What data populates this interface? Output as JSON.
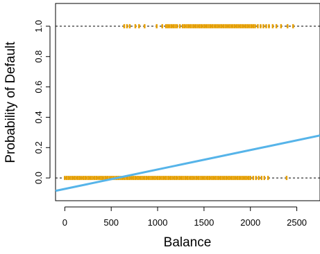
{
  "chart_data": {
    "type": "scatter",
    "title": "",
    "xlabel": "Balance",
    "ylabel": "Probability of Default",
    "xlim": [
      -100,
      2750
    ],
    "ylim": [
      -0.15,
      1.15
    ],
    "xticks": [
      "0",
      "500",
      "1000",
      "1500",
      "2000",
      "2500"
    ],
    "yticks": [
      "0.0",
      "0.2",
      "0.4",
      "0.6",
      "0.8",
      "1.0"
    ],
    "reference_lines": [
      0,
      1
    ],
    "grid": false,
    "legend": "none",
    "colors": {
      "points": "#E69F00",
      "fit_line": "#56B4E9",
      "reference": "#000000"
    },
    "fit_line": {
      "name": "",
      "x": [
        -100,
        2750
      ],
      "y": [
        -0.085,
        0.28
      ]
    },
    "default_points": {
      "y": 1,
      "x": [
        640,
        670,
        700,
        760,
        800,
        860,
        990,
        1050,
        1090,
        1110,
        1130,
        1150,
        1170,
        1190,
        1210,
        1240,
        1270,
        1290,
        1310,
        1330,
        1350,
        1370,
        1390,
        1410,
        1430,
        1450,
        1470,
        1490,
        1510,
        1530,
        1550,
        1570,
        1590,
        1610,
        1630,
        1650,
        1670,
        1690,
        1710,
        1730,
        1750,
        1770,
        1790,
        1810,
        1830,
        1850,
        1870,
        1890,
        1910,
        1930,
        1950,
        1970,
        1990,
        2010,
        2030,
        2050,
        2080,
        2110,
        2140,
        2170,
        2200,
        2240,
        2280,
        2330,
        2400,
        2460
      ]
    },
    "no_default_points": {
      "y": 0,
      "x": [
        0,
        20,
        40,
        60,
        80,
        100,
        120,
        140,
        160,
        180,
        200,
        220,
        240,
        260,
        280,
        300,
        320,
        340,
        360,
        380,
        400,
        420,
        440,
        460,
        480,
        500,
        520,
        540,
        560,
        580,
        600,
        620,
        640,
        660,
        680,
        700,
        720,
        740,
        760,
        780,
        800,
        820,
        840,
        860,
        880,
        900,
        920,
        940,
        960,
        980,
        1000,
        1020,
        1040,
        1060,
        1080,
        1100,
        1120,
        1140,
        1160,
        1180,
        1200,
        1220,
        1240,
        1260,
        1280,
        1300,
        1320,
        1340,
        1360,
        1380,
        1400,
        1420,
        1440,
        1460,
        1480,
        1500,
        1520,
        1540,
        1560,
        1580,
        1600,
        1620,
        1640,
        1660,
        1680,
        1700,
        1720,
        1740,
        1760,
        1780,
        1800,
        1820,
        1840,
        1860,
        1880,
        1900,
        1920,
        1940,
        1960,
        1980,
        2000,
        2030,
        2060,
        2090,
        2120,
        2150,
        2190,
        2390
      ]
    }
  }
}
